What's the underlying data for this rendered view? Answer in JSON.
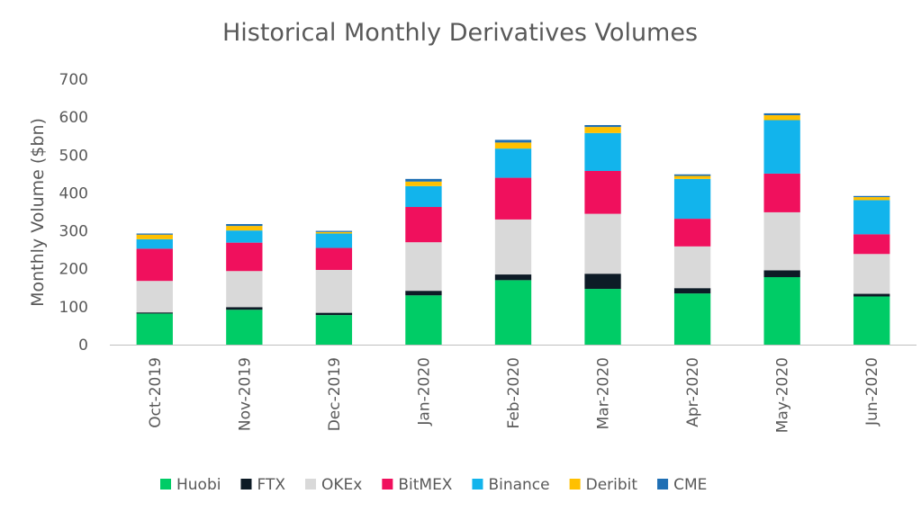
{
  "chart_data": {
    "type": "bar",
    "stacked": true,
    "title": "Historical Monthly Derivatives Volumes",
    "xlabel": "",
    "ylabel": "Monthly Volume ($bn)",
    "ylim": [
      0,
      700
    ],
    "yticks": [
      0,
      100,
      200,
      300,
      400,
      500,
      600,
      700
    ],
    "grid": false,
    "legend_position": "bottom",
    "categories": [
      "Oct-2019",
      "Nov-2019",
      "Dec-2019",
      "Jan-2020",
      "Feb-2020",
      "Mar-2020",
      "Apr-2020",
      "May-2020",
      "Jun-2020"
    ],
    "series": [
      {
        "name": "Huobi",
        "color": "#00CC66",
        "values": [
          82,
          92,
          78,
          130,
          170,
          147,
          135,
          178,
          127
        ]
      },
      {
        "name": "FTX",
        "color": "#0D1B26",
        "values": [
          3,
          7,
          6,
          12,
          15,
          40,
          14,
          18,
          7
        ]
      },
      {
        "name": "OKEx",
        "color": "#D9D9D9",
        "values": [
          83,
          95,
          113,
          128,
          145,
          158,
          110,
          153,
          105
        ]
      },
      {
        "name": "BitMEX",
        "color": "#F0105D",
        "values": [
          85,
          75,
          58,
          93,
          110,
          113,
          73,
          102,
          52
        ]
      },
      {
        "name": "Binance",
        "color": "#12B4EC",
        "values": [
          25,
          32,
          38,
          55,
          77,
          100,
          105,
          141,
          90
        ]
      },
      {
        "name": "Deribit",
        "color": "#FFC000",
        "values": [
          12,
          12,
          4,
          12,
          16,
          16,
          8,
          13,
          8
        ]
      },
      {
        "name": "CME",
        "color": "#1F6FB4",
        "values": [
          3,
          5,
          3,
          7,
          7,
          5,
          4,
          5,
          3
        ]
      }
    ]
  }
}
